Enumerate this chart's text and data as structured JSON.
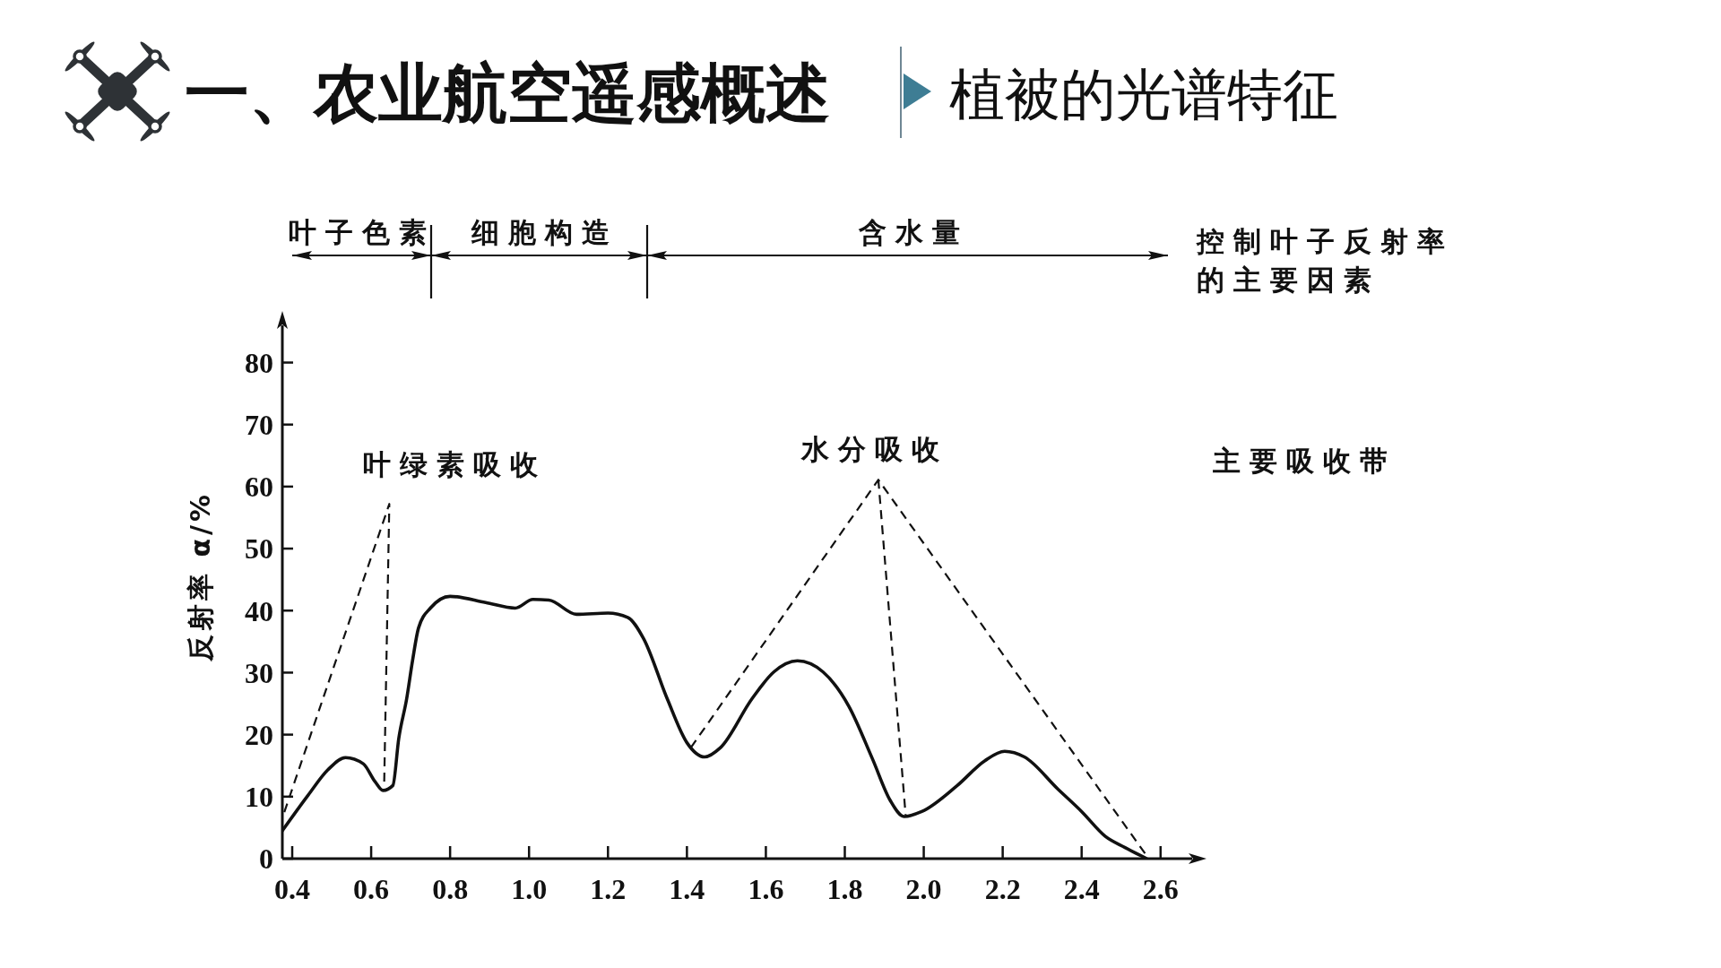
{
  "chart_data": {
    "type": "line",
    "title": "一、农业航空遥感概述",
    "subtitle": "植被的光谱特征",
    "ylabel": "反射率 α/%",
    "xlim": [
      0.375,
      2.68
    ],
    "xticks": [
      0.4,
      0.6,
      0.8,
      {
        "value": 1,
        "label": "1.0"
      },
      1.2,
      1.4,
      1.6,
      1.8,
      {
        "value": 2,
        "label": "2.0"
      },
      2.2,
      2.4,
      2.6
    ],
    "ylim": [
      0,
      86
    ],
    "yticks": [
      0,
      10,
      20,
      30,
      40,
      50,
      60,
      70,
      80
    ],
    "series": [
      {
        "color": "#111111",
        "x": [
          0.375,
          0.44,
          0.49,
          0.535,
          0.58,
          0.61,
          0.63,
          0.655,
          0.67,
          0.69,
          0.705,
          0.72,
          0.75,
          0.8,
          0.89,
          0.965,
          1.01,
          1.05,
          1.12,
          1.2,
          1.25,
          1.29,
          1.35,
          1.4,
          1.445,
          1.485,
          1.565,
          1.62,
          1.68,
          1.745,
          1.81,
          1.87,
          1.915,
          1.95,
          1.995,
          2.085,
          2.155,
          2.205,
          2.255,
          2.34,
          2.4,
          2.46,
          2.51,
          2.565
        ],
        "values": [
          4.5,
          10.2,
          14.3,
          16.3,
          15.3,
          12.4,
          11,
          11.8,
          19.4,
          25.8,
          32,
          37.2,
          40.4,
          42.3,
          41.3,
          40.4,
          41.8,
          41.7,
          39.4,
          39.6,
          38.9,
          35.5,
          25.8,
          18.7,
          16.4,
          17.9,
          25.8,
          30.1,
          31.9,
          30.1,
          24.6,
          16.1,
          9.4,
          6.8,
          7.6,
          11.8,
          15.8,
          17.3,
          16.4,
          11.2,
          7.6,
          3.6,
          1.8,
          0
        ]
      },
      {
        "color": "#111111",
        "line_style": "dashed",
        "x": [
          0.38,
          0.646,
          0.633
        ],
        "values": [
          7.5,
          57.2,
          12.1
        ]
      },
      {
        "color": "#111111",
        "line_style": "dashed",
        "x": [
          1.41,
          1.885,
          2.57
        ],
        "values": [
          17.9,
          61.1,
          0
        ]
      },
      {
        "color": "#111111",
        "line_style": "dashed",
        "x": [
          1.885,
          1.954
        ],
        "values": [
          61.1,
          7.1
        ]
      }
    ],
    "annotations": [
      "叶子色素",
      "细胞构造",
      "含水量",
      "控制叶子反射率的主要因素",
      "叶绿素吸收",
      "水分吸收",
      "主要吸收带"
    ]
  }
}
